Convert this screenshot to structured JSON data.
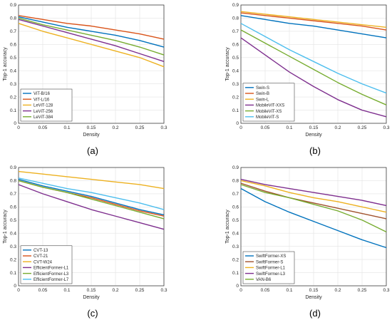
{
  "chart_data": [
    {
      "type": "line",
      "panel_label": "(a)",
      "xlabel": "Density",
      "ylabel": "Top-1 accuracy",
      "xlim": [
        0,
        0.3
      ],
      "ylim": [
        0,
        0.9
      ],
      "xticks": [
        "0",
        "0.05",
        "0.1",
        "0.15",
        "0.2",
        "0.25",
        "0.3"
      ],
      "yticks": [
        "0",
        "0.1",
        "0.2",
        "0.3",
        "0.4",
        "0.5",
        "0.6",
        "0.7",
        "0.8",
        "0.9"
      ],
      "grid": true,
      "legend_position": "bottom-left",
      "x": [
        0,
        0.05,
        0.1,
        0.15,
        0.2,
        0.25,
        0.3
      ],
      "series": [
        {
          "name": "ViT-B/16",
          "color": "#0072BD",
          "values": [
            0.81,
            0.77,
            0.73,
            0.7,
            0.67,
            0.63,
            0.58
          ]
        },
        {
          "name": "ViT-L/16",
          "color": "#D95319",
          "values": [
            0.82,
            0.79,
            0.76,
            0.74,
            0.71,
            0.68,
            0.64
          ]
        },
        {
          "name": "LeViT-128",
          "color": "#EDB120",
          "values": [
            0.76,
            0.7,
            0.65,
            0.6,
            0.55,
            0.5,
            0.43
          ]
        },
        {
          "name": "LeViT-256",
          "color": "#7E2F8E",
          "values": [
            0.79,
            0.74,
            0.69,
            0.64,
            0.59,
            0.53,
            0.47
          ]
        },
        {
          "name": "LeViT-384",
          "color": "#77AC30",
          "values": [
            0.8,
            0.75,
            0.71,
            0.67,
            0.63,
            0.58,
            0.52
          ]
        }
      ]
    },
    {
      "type": "line",
      "panel_label": "(b)",
      "xlabel": "Density",
      "ylabel": "Top-1 accuracy",
      "xlim": [
        0,
        0.3
      ],
      "ylim": [
        0,
        0.9
      ],
      "xticks": [
        "0",
        "0.05",
        "0.1",
        "0.15",
        "0.2",
        "0.25",
        "0.3"
      ],
      "yticks": [
        "0",
        "0.1",
        "0.2",
        "0.3",
        "0.4",
        "0.5",
        "0.6",
        "0.7",
        "0.8",
        "0.9"
      ],
      "grid": true,
      "legend_position": "bottom-left",
      "x": [
        0,
        0.05,
        0.1,
        0.15,
        0.2,
        0.25,
        0.3
      ],
      "series": [
        {
          "name": "Swin-S",
          "color": "#0072BD",
          "values": [
            0.82,
            0.79,
            0.76,
            0.74,
            0.71,
            0.68,
            0.65
          ]
        },
        {
          "name": "Swin-B",
          "color": "#D95319",
          "values": [
            0.84,
            0.82,
            0.8,
            0.78,
            0.76,
            0.74,
            0.71
          ]
        },
        {
          "name": "Swin-L",
          "color": "#EDB120",
          "values": [
            0.85,
            0.83,
            0.81,
            0.79,
            0.77,
            0.75,
            0.73
          ]
        },
        {
          "name": "MobileViT-XXS",
          "color": "#7E2F8E",
          "values": [
            0.65,
            0.52,
            0.39,
            0.28,
            0.18,
            0.1,
            0.05
          ]
        },
        {
          "name": "MobileViT-XS",
          "color": "#77AC30",
          "values": [
            0.71,
            0.61,
            0.51,
            0.41,
            0.31,
            0.22,
            0.14
          ]
        },
        {
          "name": "MobileViT-S",
          "color": "#4DBEEE",
          "values": [
            0.76,
            0.66,
            0.56,
            0.47,
            0.38,
            0.3,
            0.23
          ]
        }
      ]
    },
    {
      "type": "line",
      "panel_label": "(c)",
      "xlabel": "Density",
      "ylabel": "Top-1 accuracy",
      "xlim": [
        0,
        0.3
      ],
      "ylim": [
        0,
        0.9
      ],
      "xticks": [
        "0",
        "0.05",
        "0.1",
        "0.15",
        "0.2",
        "0.25",
        "0.3"
      ],
      "yticks": [
        "0",
        "0.1",
        "0.2",
        "0.3",
        "0.4",
        "0.5",
        "0.6",
        "0.7",
        "0.8",
        "0.9"
      ],
      "grid": true,
      "legend_position": "bottom-left",
      "x": [
        0,
        0.05,
        0.1,
        0.15,
        0.2,
        0.25,
        0.3
      ],
      "series": [
        {
          "name": "CVT-13",
          "color": "#0072BD",
          "values": [
            0.81,
            0.76,
            0.72,
            0.68,
            0.63,
            0.58,
            0.54
          ]
        },
        {
          "name": "CVT-21",
          "color": "#D95319",
          "values": [
            0.8,
            0.75,
            0.71,
            0.67,
            0.62,
            0.57,
            0.53
          ]
        },
        {
          "name": "CVT-W24",
          "color": "#EDB120",
          "values": [
            0.87,
            0.85,
            0.83,
            0.81,
            0.79,
            0.77,
            0.74
          ]
        },
        {
          "name": "EfficientFormer-L1",
          "color": "#7E2F8E",
          "values": [
            0.77,
            0.7,
            0.64,
            0.58,
            0.53,
            0.48,
            0.43
          ]
        },
        {
          "name": "EfficientFormer-L3",
          "color": "#77AC30",
          "values": [
            0.8,
            0.75,
            0.71,
            0.66,
            0.61,
            0.56,
            0.51
          ]
        },
        {
          "name": "EfficientFormer-L7",
          "color": "#4DBEEE",
          "values": [
            0.82,
            0.78,
            0.74,
            0.71,
            0.67,
            0.63,
            0.58
          ]
        }
      ]
    },
    {
      "type": "line",
      "panel_label": "(d)",
      "xlabel": "Density",
      "ylabel": "Top-1 accuracy",
      "xlim": [
        0,
        0.3
      ],
      "ylim": [
        0,
        0.9
      ],
      "xticks": [
        "0",
        "0.05",
        "0.1",
        "0.15",
        "0.2",
        "0.25",
        "0.3"
      ],
      "yticks": [
        "0",
        "0.1",
        "0.2",
        "0.3",
        "0.4",
        "0.5",
        "0.6",
        "0.7",
        "0.8",
        "0.9"
      ],
      "grid": true,
      "legend_position": "bottom-left",
      "x": [
        0,
        0.05,
        0.1,
        0.15,
        0.2,
        0.25,
        0.3
      ],
      "series": [
        {
          "name": "SwiftFormer-XS",
          "color": "#0072BD",
          "values": [
            0.74,
            0.64,
            0.56,
            0.49,
            0.42,
            0.35,
            0.29
          ]
        },
        {
          "name": "SwiftFormer-S",
          "color": "#A0522D",
          "values": [
            0.78,
            0.72,
            0.67,
            0.63,
            0.59,
            0.55,
            0.51
          ]
        },
        {
          "name": "SwiftFormer-L1",
          "color": "#EDB120",
          "values": [
            0.8,
            0.76,
            0.71,
            0.67,
            0.64,
            0.6,
            0.56
          ]
        },
        {
          "name": "SwiftFormer-L3",
          "color": "#7E2F8E",
          "values": [
            0.81,
            0.77,
            0.74,
            0.71,
            0.68,
            0.65,
            0.61
          ]
        },
        {
          "name": "VAN-B6",
          "color": "#77AC30",
          "values": [
            0.77,
            0.71,
            0.67,
            0.62,
            0.57,
            0.5,
            0.41
          ]
        }
      ]
    }
  ]
}
